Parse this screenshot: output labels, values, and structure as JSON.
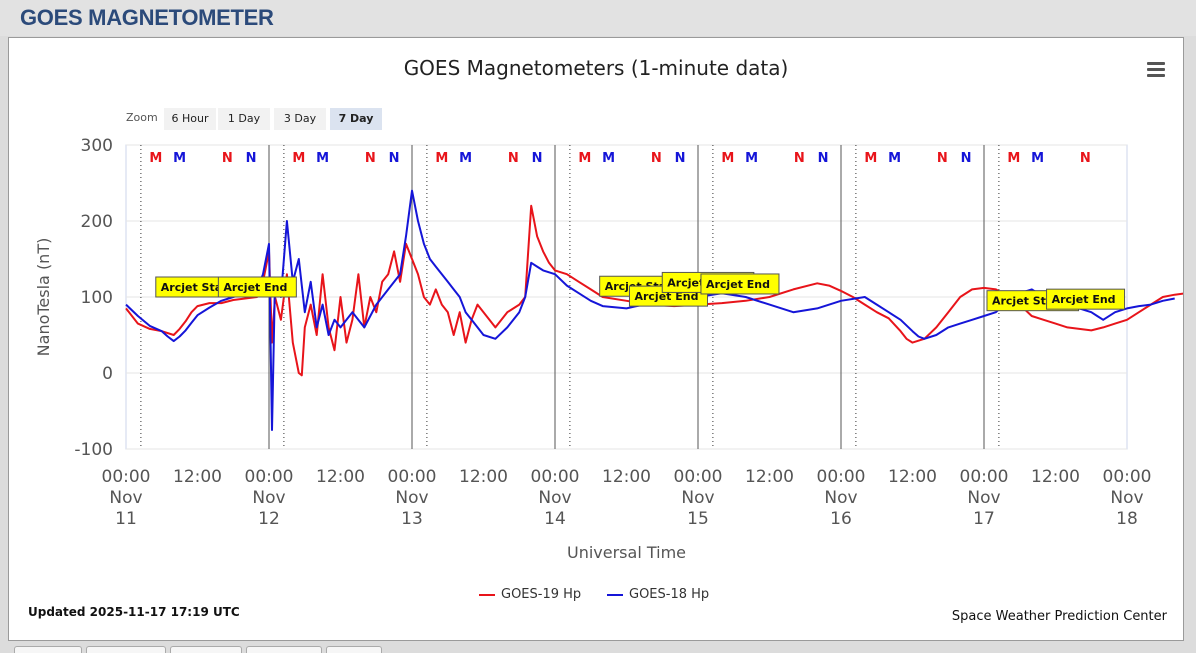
{
  "header": {
    "title": "GOES MAGNETOMETER"
  },
  "zoom": {
    "label": "Zoom",
    "buttons": [
      {
        "label": "6 Hour",
        "active": false
      },
      {
        "label": "1 Day",
        "active": false
      },
      {
        "label": "3 Day",
        "active": false
      },
      {
        "label": "7 Day",
        "active": true
      }
    ]
  },
  "menu": {
    "icon": "hamburger-menu-icon"
  },
  "footer": {
    "updated": "Updated 2025-11-17 17:19 UTC",
    "credit": "Space Weather Prediction Center"
  },
  "chart_data": {
    "type": "line",
    "title": "GOES Magnetometers (1-minute data)",
    "xlabel": "Universal Time",
    "ylabel": "NanoTesla (nT)",
    "ylim": [
      -100,
      300
    ],
    "yticks": [
      -100,
      0,
      100,
      200,
      300
    ],
    "xrange_hours": [
      0,
      168
    ],
    "xticks": [
      {
        "hour": 0,
        "lines": [
          "00:00",
          "Nov",
          "11"
        ]
      },
      {
        "hour": 12,
        "lines": [
          "12:00"
        ]
      },
      {
        "hour": 24,
        "lines": [
          "00:00",
          "Nov",
          "12"
        ]
      },
      {
        "hour": 36,
        "lines": [
          "12:00"
        ]
      },
      {
        "hour": 48,
        "lines": [
          "00:00",
          "Nov",
          "13"
        ]
      },
      {
        "hour": 60,
        "lines": [
          "12:00"
        ]
      },
      {
        "hour": 72,
        "lines": [
          "00:00",
          "Nov",
          "14"
        ]
      },
      {
        "hour": 84,
        "lines": [
          "12:00"
        ]
      },
      {
        "hour": 96,
        "lines": [
          "00:00",
          "Nov",
          "15"
        ]
      },
      {
        "hour": 108,
        "lines": [
          "12:00"
        ]
      },
      {
        "hour": 120,
        "lines": [
          "00:00",
          "Nov",
          "16"
        ]
      },
      {
        "hour": 132,
        "lines": [
          "12:00"
        ]
      },
      {
        "hour": 144,
        "lines": [
          "00:00",
          "Nov",
          "17"
        ]
      },
      {
        "hour": 156,
        "lines": [
          "12:00"
        ]
      },
      {
        "hour": 168,
        "lines": [
          "00:00",
          "Nov",
          "18"
        ]
      }
    ],
    "grid": true,
    "legend_position": "bottom-center",
    "series": [
      {
        "name": "GOES-19 Hp",
        "color": "#e8141a",
        "points": [
          [
            0,
            85
          ],
          [
            2,
            65
          ],
          [
            4,
            58
          ],
          [
            6,
            55
          ],
          [
            8,
            50
          ],
          [
            9,
            58
          ],
          [
            10,
            68
          ],
          [
            11,
            80
          ],
          [
            12,
            88
          ],
          [
            14,
            92
          ],
          [
            16,
            92
          ],
          [
            18,
            96
          ],
          [
            20,
            98
          ],
          [
            22,
            100
          ],
          [
            23,
            120
          ],
          [
            24,
            160
          ],
          [
            24.5,
            40
          ],
          [
            25,
            100
          ],
          [
            26,
            70
          ],
          [
            27,
            130
          ],
          [
            28,
            40
          ],
          [
            29,
            0
          ],
          [
            29.5,
            -3
          ],
          [
            30,
            60
          ],
          [
            31,
            90
          ],
          [
            32,
            50
          ],
          [
            33,
            130
          ],
          [
            34,
            60
          ],
          [
            35,
            30
          ],
          [
            36,
            100
          ],
          [
            37,
            40
          ],
          [
            38,
            70
          ],
          [
            39,
            130
          ],
          [
            40,
            60
          ],
          [
            41,
            100
          ],
          [
            42,
            80
          ],
          [
            43,
            120
          ],
          [
            44,
            130
          ],
          [
            45,
            160
          ],
          [
            46,
            120
          ],
          [
            47,
            170
          ],
          [
            48,
            150
          ],
          [
            49,
            130
          ],
          [
            50,
            100
          ],
          [
            51,
            90
          ],
          [
            52,
            110
          ],
          [
            53,
            90
          ],
          [
            54,
            80
          ],
          [
            55,
            50
          ],
          [
            56,
            80
          ],
          [
            57,
            40
          ],
          [
            58,
            70
          ],
          [
            59,
            90
          ],
          [
            60,
            80
          ],
          [
            62,
            60
          ],
          [
            64,
            80
          ],
          [
            66,
            90
          ],
          [
            67,
            100
          ],
          [
            68,
            220
          ],
          [
            69,
            180
          ],
          [
            70,
            160
          ],
          [
            71,
            145
          ],
          [
            72,
            135
          ],
          [
            74,
            130
          ],
          [
            76,
            120
          ],
          [
            78,
            110
          ],
          [
            80,
            100
          ],
          [
            84,
            95
          ],
          [
            88,
            90
          ],
          [
            92,
            88
          ],
          [
            96,
            90
          ],
          [
            100,
            92
          ],
          [
            104,
            95
          ],
          [
            108,
            100
          ],
          [
            112,
            110
          ],
          [
            116,
            118
          ],
          [
            118,
            115
          ],
          [
            120,
            108
          ],
          [
            122,
            100
          ],
          [
            124,
            90
          ],
          [
            126,
            80
          ],
          [
            128,
            72
          ],
          [
            130,
            55
          ],
          [
            131,
            45
          ],
          [
            132,
            40
          ],
          [
            134,
            45
          ],
          [
            136,
            60
          ],
          [
            138,
            80
          ],
          [
            140,
            100
          ],
          [
            142,
            110
          ],
          [
            144,
            112
          ],
          [
            146,
            110
          ],
          [
            148,
            100
          ],
          [
            150,
            90
          ],
          [
            152,
            75
          ],
          [
            154,
            70
          ],
          [
            156,
            65
          ],
          [
            158,
            60
          ],
          [
            160,
            58
          ],
          [
            162,
            56
          ],
          [
            164,
            60
          ],
          [
            166,
            65
          ],
          [
            168,
            70
          ],
          [
            170,
            80
          ],
          [
            172,
            90
          ],
          [
            174,
            100
          ],
          [
            176,
            103
          ],
          [
            178,
            105
          ],
          [
            180,
            105
          ],
          [
            182,
            104
          ]
        ]
      },
      {
        "name": "GOES-18 Hp",
        "color": "#1515d8",
        "points": [
          [
            0,
            90
          ],
          [
            2,
            75
          ],
          [
            4,
            62
          ],
          [
            6,
            55
          ],
          [
            7,
            48
          ],
          [
            8,
            42
          ],
          [
            9,
            48
          ],
          [
            10,
            56
          ],
          [
            11,
            66
          ],
          [
            12,
            76
          ],
          [
            14,
            86
          ],
          [
            16,
            95
          ],
          [
            18,
            100
          ],
          [
            20,
            105
          ],
          [
            22,
            110
          ],
          [
            23,
            130
          ],
          [
            24,
            170
          ],
          [
            24.5,
            -75
          ],
          [
            25,
            120
          ],
          [
            26,
            100
          ],
          [
            27,
            200
          ],
          [
            28,
            120
          ],
          [
            29,
            150
          ],
          [
            30,
            80
          ],
          [
            31,
            120
          ],
          [
            32,
            60
          ],
          [
            33,
            90
          ],
          [
            34,
            50
          ],
          [
            35,
            70
          ],
          [
            36,
            60
          ],
          [
            38,
            80
          ],
          [
            40,
            60
          ],
          [
            42,
            90
          ],
          [
            44,
            110
          ],
          [
            46,
            130
          ],
          [
            47,
            180
          ],
          [
            48,
            240
          ],
          [
            49,
            200
          ],
          [
            50,
            170
          ],
          [
            51,
            150
          ],
          [
            52,
            140
          ],
          [
            54,
            120
          ],
          [
            55,
            110
          ],
          [
            56,
            100
          ],
          [
            57,
            80
          ],
          [
            58,
            70
          ],
          [
            60,
            50
          ],
          [
            62,
            45
          ],
          [
            64,
            60
          ],
          [
            66,
            80
          ],
          [
            67,
            100
          ],
          [
            68,
            145
          ],
          [
            69,
            140
          ],
          [
            70,
            135
          ],
          [
            72,
            130
          ],
          [
            74,
            115
          ],
          [
            76,
            105
          ],
          [
            78,
            95
          ],
          [
            80,
            88
          ],
          [
            84,
            85
          ],
          [
            88,
            92
          ],
          [
            92,
            95
          ],
          [
            96,
            100
          ],
          [
            100,
            105
          ],
          [
            104,
            100
          ],
          [
            108,
            90
          ],
          [
            112,
            80
          ],
          [
            116,
            85
          ],
          [
            120,
            95
          ],
          [
            124,
            100
          ],
          [
            126,
            90
          ],
          [
            128,
            80
          ],
          [
            130,
            70
          ],
          [
            132,
            55
          ],
          [
            133,
            48
          ],
          [
            134,
            45
          ],
          [
            136,
            50
          ],
          [
            138,
            60
          ],
          [
            140,
            65
          ],
          [
            142,
            70
          ],
          [
            144,
            75
          ],
          [
            146,
            80
          ],
          [
            148,
            95
          ],
          [
            150,
            105
          ],
          [
            152,
            110
          ],
          [
            154,
            100
          ],
          [
            156,
            95
          ],
          [
            158,
            90
          ],
          [
            160,
            85
          ],
          [
            162,
            80
          ],
          [
            163,
            75
          ],
          [
            164,
            70
          ],
          [
            166,
            80
          ],
          [
            168,
            85
          ],
          [
            170,
            88
          ],
          [
            172,
            90
          ],
          [
            174,
            95
          ],
          [
            176,
            98
          ]
        ]
      }
    ],
    "annotations": [
      {
        "label": "Arcjet Start",
        "x": 5,
        "y": 100
      },
      {
        "label": "Arcjet End",
        "x": 15.5,
        "y": 100
      },
      {
        "label": "Arcjet Start",
        "x": 79.5,
        "y": 101
      },
      {
        "label": "Arcjet End",
        "x": 84.5,
        "y": 88
      },
      {
        "label": "Arcjet Start",
        "x": 90,
        "y": 106
      },
      {
        "label": "Arcjet End",
        "x": 96.5,
        "y": 104
      },
      {
        "label": "Arcjet Start",
        "x": 144.5,
        "y": 82
      },
      {
        "label": "Arcjet End",
        "x": 154.5,
        "y": 84
      }
    ],
    "day_markers": [
      24,
      48,
      72,
      96,
      120,
      144
    ],
    "dotted_markers": [
      2.5,
      26.5,
      50.5,
      74.5,
      98.5,
      122.5,
      146.5
    ],
    "event_labels": [
      {
        "text": "M",
        "x": 5,
        "color": "#e8141a"
      },
      {
        "text": "M",
        "x": 9,
        "color": "#1515d8"
      },
      {
        "text": "N",
        "x": 17,
        "color": "#e8141a"
      },
      {
        "text": "N",
        "x": 21,
        "color": "#1515d8"
      },
      {
        "text": "M",
        "x": 29,
        "color": "#e8141a"
      },
      {
        "text": "M",
        "x": 33,
        "color": "#1515d8"
      },
      {
        "text": "N",
        "x": 41,
        "color": "#e8141a"
      },
      {
        "text": "N",
        "x": 45,
        "color": "#1515d8"
      },
      {
        "text": "M",
        "x": 53,
        "color": "#e8141a"
      },
      {
        "text": "M",
        "x": 57,
        "color": "#1515d8"
      },
      {
        "text": "N",
        "x": 65,
        "color": "#e8141a"
      },
      {
        "text": "N",
        "x": 69,
        "color": "#1515d8"
      },
      {
        "text": "M",
        "x": 77,
        "color": "#e8141a"
      },
      {
        "text": "M",
        "x": 81,
        "color": "#1515d8"
      },
      {
        "text": "N",
        "x": 89,
        "color": "#e8141a"
      },
      {
        "text": "N",
        "x": 93,
        "color": "#1515d8"
      },
      {
        "text": "M",
        "x": 101,
        "color": "#e8141a"
      },
      {
        "text": "M",
        "x": 105,
        "color": "#1515d8"
      },
      {
        "text": "N",
        "x": 113,
        "color": "#e8141a"
      },
      {
        "text": "N",
        "x": 117,
        "color": "#1515d8"
      },
      {
        "text": "M",
        "x": 125,
        "color": "#e8141a"
      },
      {
        "text": "M",
        "x": 129,
        "color": "#1515d8"
      },
      {
        "text": "N",
        "x": 137,
        "color": "#e8141a"
      },
      {
        "text": "N",
        "x": 141,
        "color": "#1515d8"
      },
      {
        "text": "M",
        "x": 149,
        "color": "#e8141a"
      },
      {
        "text": "M",
        "x": 153,
        "color": "#1515d8"
      },
      {
        "text": "N",
        "x": 161,
        "color": "#e8141a"
      }
    ]
  }
}
